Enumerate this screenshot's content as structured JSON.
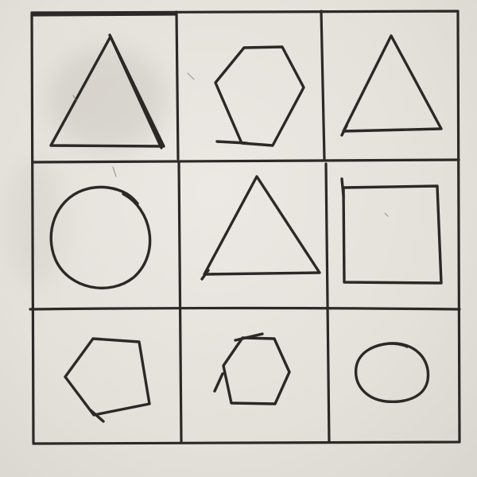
{
  "grid": {
    "rows": 3,
    "columns": 3,
    "ink_color": "#2b2927",
    "paper_color": "#e6e2dc"
  },
  "cells": [
    {
      "row": 1,
      "column": 1,
      "shape": "triangle"
    },
    {
      "row": 1,
      "column": 2,
      "shape": "hexagon"
    },
    {
      "row": 1,
      "column": 3,
      "shape": "triangle"
    },
    {
      "row": 2,
      "column": 1,
      "shape": "circle"
    },
    {
      "row": 2,
      "column": 2,
      "shape": "triangle"
    },
    {
      "row": 2,
      "column": 3,
      "shape": "square"
    },
    {
      "row": 3,
      "column": 1,
      "shape": "pentagon"
    },
    {
      "row": 3,
      "column": 2,
      "shape": "hexagon"
    },
    {
      "row": 3,
      "column": 3,
      "shape": "circle"
    }
  ]
}
